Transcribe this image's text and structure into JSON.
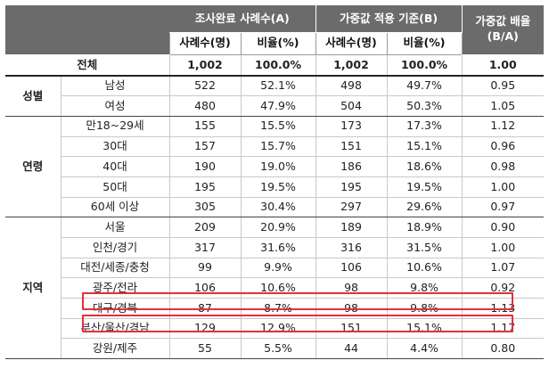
{
  "header": {
    "col_a": "조사완료 사례수(A)",
    "col_b": "가중값 적용 기준(B)",
    "col_ratio": "가중값 배율 (B/A)",
    "sub_count": "사례수(명)",
    "sub_pct": "비율(%)"
  },
  "total": {
    "label": "전체",
    "a_count": "1,002",
    "a_pct": "100.0%",
    "b_count": "1,002",
    "b_pct": "100.0%",
    "ratio": "1.00"
  },
  "groups": [
    {
      "name": "성별",
      "rows": [
        {
          "label": "남성",
          "a_count": "522",
          "a_pct": "52.1%",
          "b_count": "498",
          "b_pct": "49.7%",
          "ratio": "0.95"
        },
        {
          "label": "여성",
          "a_count": "480",
          "a_pct": "47.9%",
          "b_count": "504",
          "b_pct": "50.3%",
          "ratio": "1.05"
        }
      ]
    },
    {
      "name": "연령",
      "rows": [
        {
          "label": "만18~29세",
          "a_count": "155",
          "a_pct": "15.5%",
          "b_count": "173",
          "b_pct": "17.3%",
          "ratio": "1.12"
        },
        {
          "label": "30대",
          "a_count": "157",
          "a_pct": "15.7%",
          "b_count": "151",
          "b_pct": "15.1%",
          "ratio": "0.96"
        },
        {
          "label": "40대",
          "a_count": "190",
          "a_pct": "19.0%",
          "b_count": "186",
          "b_pct": "18.6%",
          "ratio": "0.98"
        },
        {
          "label": "50대",
          "a_count": "195",
          "a_pct": "19.5%",
          "b_count": "195",
          "b_pct": "19.5%",
          "ratio": "1.00"
        },
        {
          "label": "60세 이상",
          "a_count": "305",
          "a_pct": "30.4%",
          "b_count": "297",
          "b_pct": "29.6%",
          "ratio": "0.97"
        }
      ]
    },
    {
      "name": "지역",
      "rows": [
        {
          "label": "서울",
          "a_count": "209",
          "a_pct": "20.9%",
          "b_count": "189",
          "b_pct": "18.9%",
          "ratio": "0.90"
        },
        {
          "label": "인천/경기",
          "a_count": "317",
          "a_pct": "31.6%",
          "b_count": "316",
          "b_pct": "31.5%",
          "ratio": "1.00"
        },
        {
          "label": "대전/세종/충청",
          "a_count": "99",
          "a_pct": "9.9%",
          "b_count": "106",
          "b_pct": "10.6%",
          "ratio": "1.07"
        },
        {
          "label": "광주/전라",
          "a_count": "106",
          "a_pct": "10.6%",
          "b_count": "98",
          "b_pct": "9.8%",
          "ratio": "0.92"
        },
        {
          "label": "대구/경북",
          "a_count": "87",
          "a_pct": "8.7%",
          "b_count": "98",
          "b_pct": "9.8%",
          "ratio": "1.13"
        },
        {
          "label": "부산/울산/경남",
          "a_count": "129",
          "a_pct": "12.9%",
          "b_count": "151",
          "b_pct": "15.1%",
          "ratio": "1.17"
        },
        {
          "label": "강원/제주",
          "a_count": "55",
          "a_pct": "5.5%",
          "b_count": "44",
          "b_pct": "4.4%",
          "ratio": "0.80"
        }
      ]
    }
  ],
  "highlight_color": "#e0313a",
  "header_color": "#6b6b6b"
}
